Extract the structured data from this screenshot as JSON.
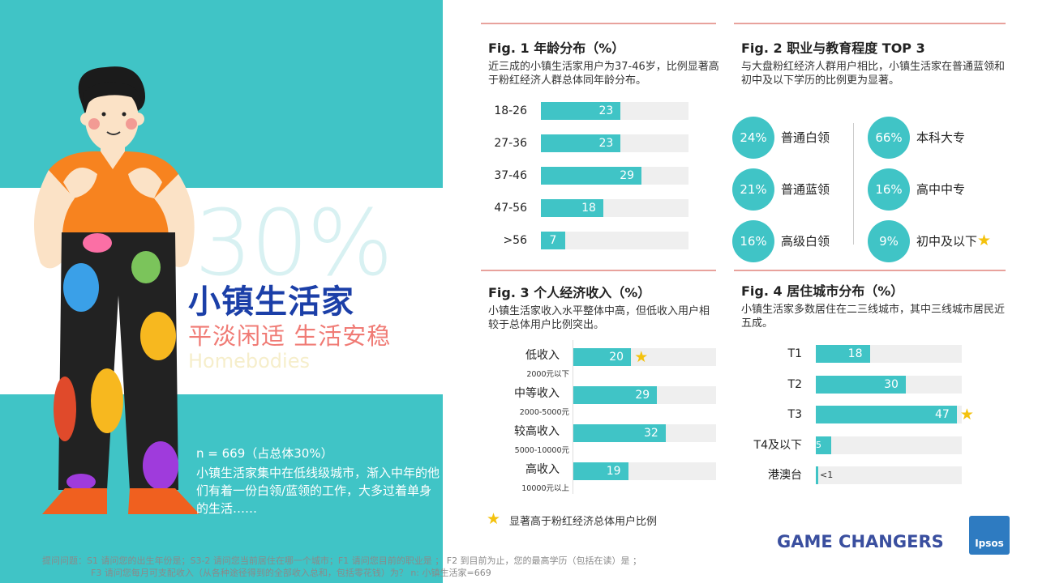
{
  "segment": {
    "big_percent": "30%",
    "title": "小镇生活家",
    "slogan": "平淡闲适 生活安稳",
    "english_name": "Homebodies",
    "sample": "n = 669（占总体30%）",
    "description": "小镇生活家集中在低线级城市，渐入中年的他们有着一份白领/蓝领的工作，大多过着单身的生活……"
  },
  "source": {
    "line1": "提问问题：S1 请问您的出生年份是；S3-2 请问您当前居住在哪一个城市；F1 请问您目前的职业是 ； F2 到目前为止，您的最高学历（包括在读）是 ；",
    "line2": "F3 请问您每月可支配收入（从各种途径得到的全部收入总和，包括零花钱）为？   n: 小镇生活家=669"
  },
  "legend": {
    "star_text": "显著高于粉红经济总体用户比例"
  },
  "logos": {
    "gamechangers": "GAME CHANGERS",
    "ipsos": "Ipsos"
  },
  "colors": {
    "teal": "#40c4c6",
    "navy": "#1b3fa8",
    "salmon": "#f07b75",
    "star": "#f4c20d"
  },
  "chart_data": [
    {
      "type": "bar",
      "title": "Fig. 1  年龄分布（%）",
      "subtitle": "近三成的小镇生活家用户为37-46岁，比例显著高于粉红经济人群总体同年龄分布。",
      "categories": [
        "18-26",
        "27-36",
        "37-46",
        "47-56",
        ">56"
      ],
      "values": [
        23,
        23,
        29,
        18,
        7
      ],
      "xlim": [
        0,
        50
      ]
    },
    {
      "type": "table",
      "title": "Fig. 2  职业与教育程度 TOP 3",
      "subtitle": "与大盘粉红经济人群用户相比，小镇生活家在普通蓝领和初中及以下学历的比例更为显著。",
      "occupation": [
        {
          "label": "普通白领",
          "value": "24%"
        },
        {
          "label": "普通蓝领",
          "value": "21%"
        },
        {
          "label": "高级白领",
          "value": "16%"
        }
      ],
      "education": [
        {
          "label": "本科大专",
          "value": "66%"
        },
        {
          "label": "高中中专",
          "value": "16%"
        },
        {
          "label": "初中及以下",
          "value": "9%",
          "star": true
        }
      ]
    },
    {
      "type": "bar",
      "title": "Fig. 3  个人经济收入（%）",
      "subtitle": "小镇生活家收入水平整体中高，但低收入用户相较于总体用户比例突出。",
      "categories": [
        "低收入",
        "中等收入",
        "较高收入",
        "高收入"
      ],
      "sublabels": [
        "2000元以下",
        "2000-5000元",
        "5000-10000元",
        "10000元以上"
      ],
      "values": [
        20,
        29,
        32,
        19
      ],
      "stars": [
        true,
        false,
        false,
        false
      ],
      "xlim": [
        0,
        50
      ]
    },
    {
      "type": "bar",
      "title": "Fig. 4  居住城市分布（%）",
      "subtitle": "小镇生活家多数居住在二三线城市，其中三线城市居民近五成。",
      "categories": [
        "T1",
        "T2",
        "T3",
        "T4及以下",
        "港澳台"
      ],
      "values": [
        18,
        30,
        47,
        5,
        0.5
      ],
      "value_labels": [
        "18",
        "30",
        "47",
        "5",
        "<1"
      ],
      "stars": [
        false,
        false,
        true,
        false,
        false
      ],
      "xlim": [
        0,
        50
      ]
    }
  ]
}
